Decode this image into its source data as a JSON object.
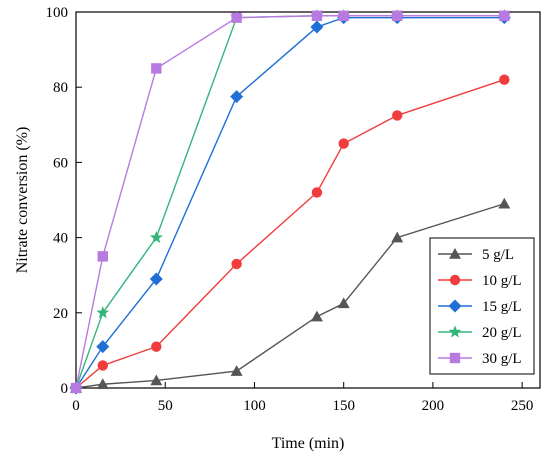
{
  "chart_data": {
    "type": "line",
    "xlabel": "Time (min)",
    "ylabel": "Nitrate conversion (%)",
    "xlim": [
      0,
      260
    ],
    "ylim": [
      0,
      100
    ],
    "xticks": [
      0,
      50,
      100,
      150,
      200,
      250
    ],
    "yticks": [
      0,
      20,
      40,
      60,
      80,
      100
    ],
    "legend_position": "lower-right",
    "grid": false,
    "series": [
      {
        "name": "5 g/L",
        "marker": "triangle",
        "color": "#555555",
        "x": [
          0,
          15,
          45,
          90,
          135,
          150,
          180,
          240
        ],
        "y": [
          0,
          1,
          2,
          4.5,
          19,
          22.5,
          40,
          49
        ]
      },
      {
        "name": "10 g/L",
        "marker": "circle",
        "color": "#f03c3c",
        "x": [
          0,
          15,
          45,
          90,
          135,
          150,
          180,
          240
        ],
        "y": [
          0,
          6,
          11,
          33,
          52,
          65,
          72.5,
          82
        ]
      },
      {
        "name": "15 g/L",
        "marker": "diamond",
        "color": "#1f6fd6",
        "x": [
          0,
          15,
          45,
          90,
          135,
          150,
          180,
          240
        ],
        "y": [
          0,
          11,
          29,
          77.5,
          96,
          98.5,
          98.5,
          98.5
        ]
      },
      {
        "name": "20 g/L",
        "marker": "star",
        "color": "#33b57a",
        "x": [
          0,
          15,
          45,
          90,
          135,
          150,
          180,
          240
        ],
        "y": [
          0,
          20,
          40,
          98.5,
          99,
          99,
          99,
          99
        ]
      },
      {
        "name": "30 g/L",
        "marker": "square",
        "color": "#b87ae0",
        "x": [
          0,
          15,
          45,
          90,
          135,
          150,
          180,
          240
        ],
        "y": [
          0,
          35,
          85,
          98.5,
          99,
          99,
          99,
          99
        ]
      }
    ]
  }
}
